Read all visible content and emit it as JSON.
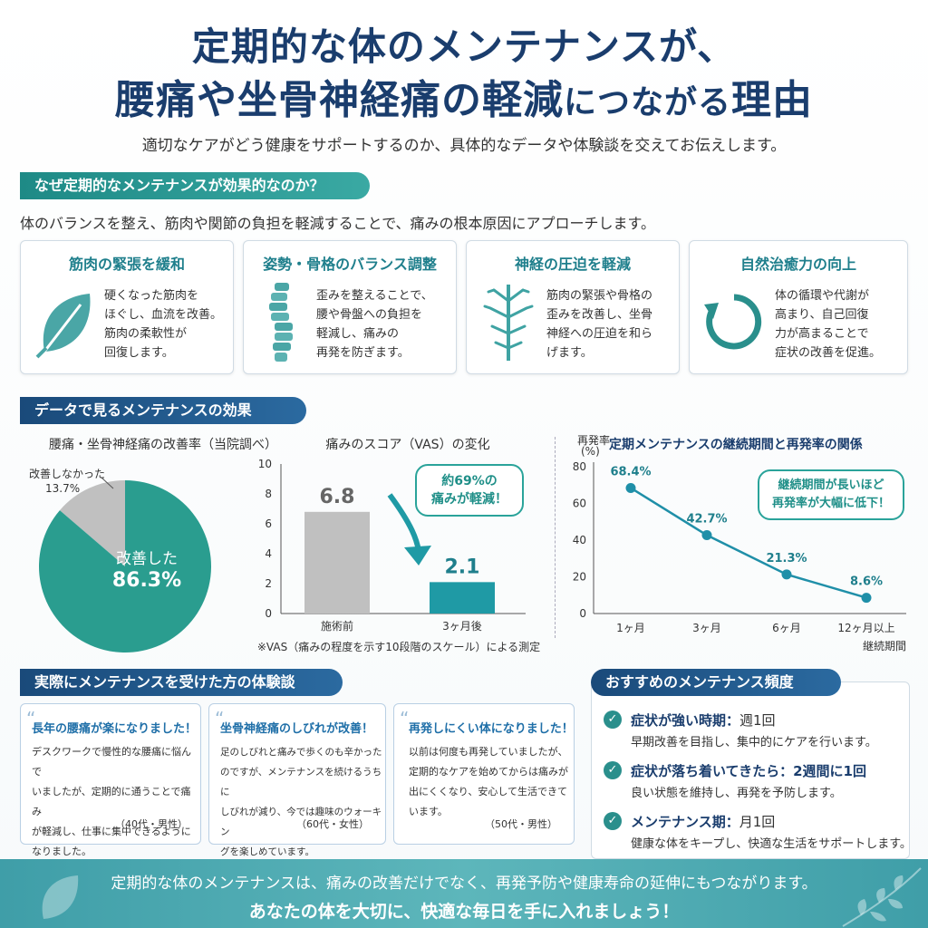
{
  "header": {
    "title_line1": "定期的な体のメンテナンスが、",
    "title_line2_a": "腰痛や坐骨神経痛の軽減",
    "title_line2_b": "につながる",
    "title_line2_c": "理由",
    "subtitle": "適切なケアがどう健康をサポートするのか、具体的なデータや体験談を交えてお伝えします。"
  },
  "why": {
    "heading": "なぜ定期的なメンテナンスが効果的なのか？",
    "lead": "体のバランスを整え、筋肉や関節の負担を軽減することで、痛みの根本原因にアプローチします。",
    "cards": [
      {
        "title": "筋肉の緊張を緩和",
        "icon": "leaf-icon",
        "lines": [
          "硬くなった筋肉を",
          "ほぐし、血流を改善。",
          "筋肉の柔軟性が",
          "回復します。"
        ]
      },
      {
        "title": "姿勢・骨格のバランス調整",
        "icon": "spine-icon",
        "lines": [
          "歪みを整えることで、",
          "腰や骨盤への負担を",
          "軽減し、痛みの",
          "再発を防ぎます。"
        ]
      },
      {
        "title": "神経の圧迫を軽減",
        "icon": "nerve-icon",
        "lines": [
          "筋肉の緊張や骨格の",
          "歪みを改善し、坐骨",
          "神経への圧迫を和ら",
          "げます。"
        ]
      },
      {
        "title": "自然治癒力の向上",
        "icon": "cycle-icon",
        "lines": [
          "体の循環や代謝が",
          "高まり、自己回復",
          "力が高まることで",
          "症状の改善を促進。"
        ]
      }
    ]
  },
  "data_section": {
    "heading": "データで見るメンテナンスの効果"
  },
  "colors": {
    "teal": "#2a9d8f",
    "navy": "#1a3d6d",
    "gray": "#c0c0c0",
    "bar_teal": "#1f9aa5"
  },
  "chart_data": [
    {
      "type": "pie",
      "title": "腰痛・坐骨神経痛の改善率（当院調べ）",
      "labels": [
        "改善した",
        "改善しなかった"
      ],
      "values": [
        86.3,
        13.7
      ],
      "value_labels": [
        "86.3%",
        "13.7%"
      ]
    },
    {
      "type": "bar",
      "title": "痛みのスコア（VAS）の変化",
      "categories": [
        "施術前",
        "3ヶ月後"
      ],
      "values": [
        6.8,
        2.1
      ],
      "value_labels": [
        "6.8",
        "2.1"
      ],
      "ylim": [
        0,
        10
      ],
      "yticks": [
        "0",
        "2",
        "4",
        "6",
        "8",
        "10"
      ],
      "callout": [
        "約69%の",
        "痛みが軽減！"
      ],
      "note": "※VAS（痛みの程度を示す10段階のスケール）による測定"
    },
    {
      "type": "line",
      "title": "定期メンテナンスの継続期間と再発率の関係",
      "ylabel_l1": "再発率",
      "ylabel_l2": "(%)",
      "xlabel": "継続期間",
      "categories": [
        "1ヶ月",
        "3ヶ月",
        "6ヶ月",
        "12ヶ月以上"
      ],
      "values": [
        68.4,
        42.7,
        21.3,
        8.6
      ],
      "value_labels": [
        "68.4%",
        "42.7%",
        "21.3%",
        "8.6%"
      ],
      "ylim": [
        0,
        80
      ],
      "yticks": [
        "0",
        "20",
        "40",
        "60",
        "80"
      ],
      "callout": [
        "継続期間が長いほど",
        "再発率が大幅に低下！"
      ]
    }
  ],
  "testimonials": {
    "heading": "実際にメンテナンスを受けた方の体験談",
    "items": [
      {
        "title": "長年の腰痛が楽になりました！",
        "lines": [
          "デスクワークで慢性的な腰痛に悩んで",
          "いましたが、定期的に通うことで痛み",
          "が軽減し、仕事に集中できるように",
          "なりました。"
        ],
        "who": "（40代・男性）"
      },
      {
        "title": "坐骨神経痛のしびれが改善！",
        "lines": [
          "足のしびれと痛みで歩くのも辛かった",
          "のですが、メンテナンスを続けるうちに",
          "しびれが減り、今では趣味のウォーキン",
          "グを楽しめています。"
        ],
        "who": "（60代・女性）"
      },
      {
        "title": "再発しにくい体になりました！",
        "lines": [
          "以前は何度も再発していましたが、",
          "定期的なケアを始めてからは痛みが",
          "出にくくなり、安心して生活できて",
          "います。"
        ],
        "who": "（50代・男性）"
      }
    ]
  },
  "frequency": {
    "heading": "おすすめのメンテナンス頻度",
    "items": [
      {
        "label": "症状が強い時期：",
        "value": "週1回",
        "desc": "早期改善を目指し、集中的にケアを行います。"
      },
      {
        "label": "症状が落ち着いてきたら：",
        "value": "2週間に1回",
        "desc": "良い状態を維持し、再発を予防します。"
      },
      {
        "label": "メンテナンス期：",
        "value": "月1回",
        "desc": "健康な体をキープし、快適な生活をサポートします。"
      }
    ]
  },
  "footer": {
    "line1": "定期的な体のメンテナンスは、痛みの改善だけでなく、再発予防や健康寿命の延伸にもつながります。",
    "line2": "あなたの体を大切に、快適な毎日を手に入れましょう！"
  }
}
